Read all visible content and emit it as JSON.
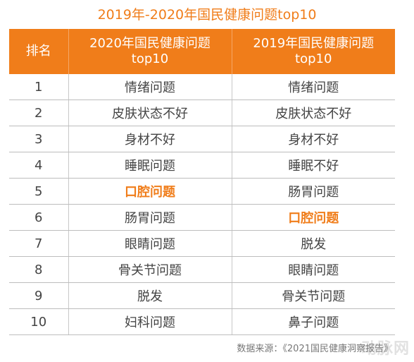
{
  "title": "2019年-2020年国民健康问题top10",
  "table": {
    "header": {
      "rank": "排名",
      "col2020_line1": "2020年国民健康问题",
      "col2020_line2": "top10",
      "col2019_line1": "2019年国民健康问题",
      "col2019_line2": "top10"
    },
    "rows": [
      {
        "rank": "1",
        "y2020": "情绪问题",
        "y2019": "情绪问题"
      },
      {
        "rank": "2",
        "y2020": "皮肤状态不好",
        "y2019": "皮肤状态不好"
      },
      {
        "rank": "3",
        "y2020": "身材不好",
        "y2019": "身材不好"
      },
      {
        "rank": "4",
        "y2020": "睡眠问题",
        "y2019": "睡眠不好"
      },
      {
        "rank": "5",
        "y2020": "口腔问题",
        "y2019": "肠胃问题"
      },
      {
        "rank": "6",
        "y2020": "肠胃问题",
        "y2019": "口腔问题"
      },
      {
        "rank": "7",
        "y2020": "眼睛问题",
        "y2019": "脱发"
      },
      {
        "rank": "8",
        "y2020": "骨关节问题",
        "y2019": "眼睛问题"
      },
      {
        "rank": "9",
        "y2020": "脱发",
        "y2019": "骨关节问题"
      },
      {
        "rank": "10",
        "y2020": "妇科问题",
        "y2019": "鼻子问题"
      }
    ],
    "highlight_text": "口腔问题"
  },
  "source": "数据来源：《2021国民健康洞察报告》",
  "watermark": "动脉网",
  "colors": {
    "accent": "#f07d1a",
    "text": "#444444",
    "rule": "#bdbdbd"
  }
}
